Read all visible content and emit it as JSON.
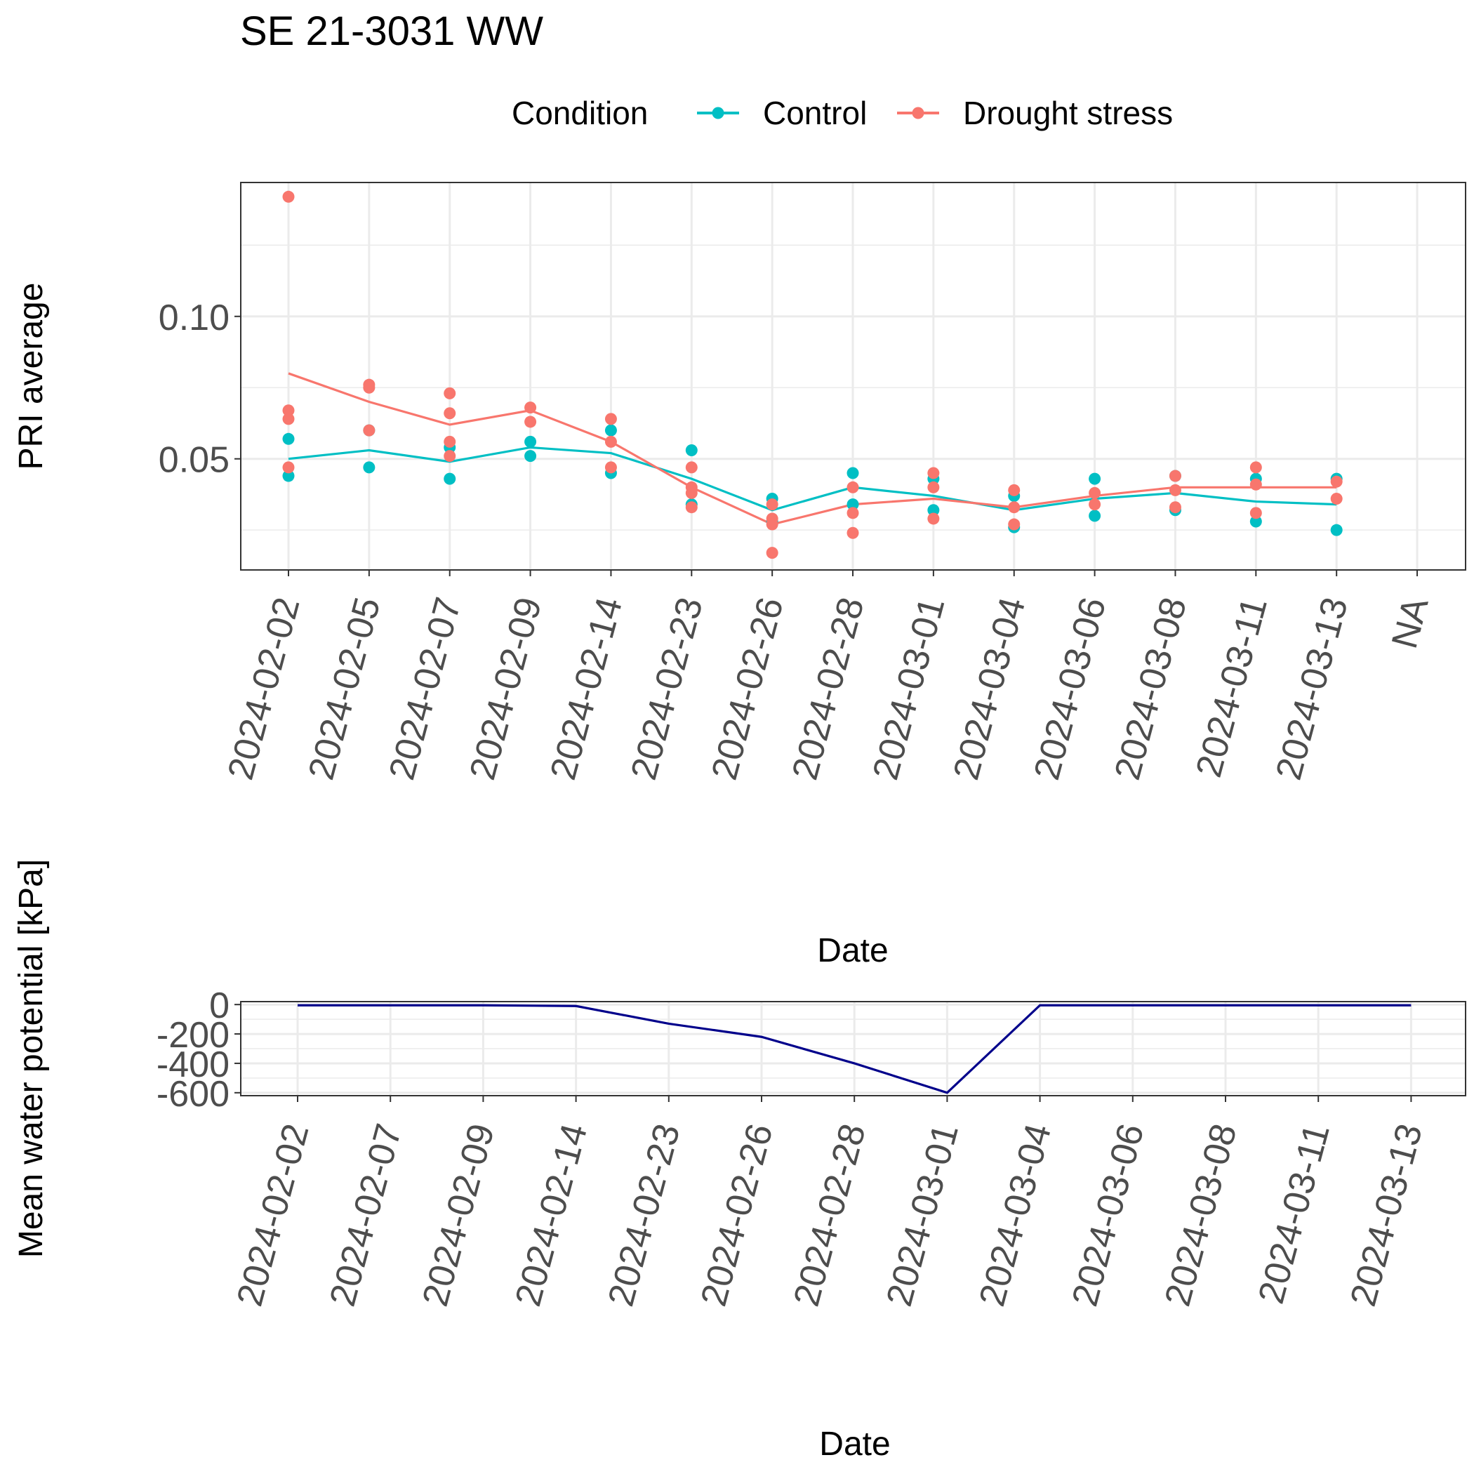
{
  "title": "SE 21-3031 WW",
  "legend": {
    "title": "Condition",
    "items": [
      {
        "label": "Control",
        "color": "#00BFC4"
      },
      {
        "label": "Drought stress",
        "color": "#F8766D"
      }
    ]
  },
  "chart_data": [
    {
      "type": "scatter",
      "title": "SE 21-3031 WW",
      "xlabel": "Date",
      "ylabel": "PRI average",
      "categories": [
        "2024-02-02",
        "2024-02-05",
        "2024-02-07",
        "2024-02-09",
        "2024-02-14",
        "2024-02-23",
        "2024-02-26",
        "2024-02-28",
        "2024-03-01",
        "2024-03-04",
        "2024-03-06",
        "2024-03-08",
        "2024-03-11",
        "2024-03-13",
        "NA"
      ],
      "ylim": [
        0.011,
        0.147
      ],
      "yticks": [
        0.05,
        0.1
      ],
      "ytick_labels": [
        "0.05",
        "0.10"
      ],
      "grid": true,
      "legend_position": "top",
      "series": [
        {
          "name": "Control",
          "color": "#00BFC4",
          "points": [
            [
              "2024-02-02",
              0.057
            ],
            [
              "2024-02-02",
              0.044
            ],
            [
              "2024-02-05",
              0.06
            ],
            [
              "2024-02-05",
              0.047
            ],
            [
              "2024-02-07",
              0.054
            ],
            [
              "2024-02-07",
              0.043
            ],
            [
              "2024-02-09",
              0.056
            ],
            [
              "2024-02-09",
              0.051
            ],
            [
              "2024-02-14",
              0.06
            ],
            [
              "2024-02-14",
              0.045
            ],
            [
              "2024-02-23",
              0.053
            ],
            [
              "2024-02-23",
              0.034
            ],
            [
              "2024-02-26",
              0.036
            ],
            [
              "2024-02-26",
              0.028
            ],
            [
              "2024-02-28",
              0.045
            ],
            [
              "2024-02-28",
              0.034
            ],
            [
              "2024-03-01",
              0.043
            ],
            [
              "2024-03-01",
              0.032
            ],
            [
              "2024-03-04",
              0.037
            ],
            [
              "2024-03-04",
              0.026
            ],
            [
              "2024-03-06",
              0.043
            ],
            [
              "2024-03-06",
              0.03
            ],
            [
              "2024-03-08",
              0.044
            ],
            [
              "2024-03-08",
              0.032
            ],
            [
              "2024-03-11",
              0.043
            ],
            [
              "2024-03-11",
              0.028
            ],
            [
              "2024-03-13",
              0.043
            ],
            [
              "2024-03-13",
              0.025
            ]
          ],
          "mean_line": [
            [
              "2024-02-02",
              0.05
            ],
            [
              "2024-02-05",
              0.053
            ],
            [
              "2024-02-07",
              0.049
            ],
            [
              "2024-02-09",
              0.054
            ],
            [
              "2024-02-14",
              0.052
            ],
            [
              "2024-02-23",
              0.043
            ],
            [
              "2024-02-26",
              0.032
            ],
            [
              "2024-02-28",
              0.04
            ],
            [
              "2024-03-01",
              0.037
            ],
            [
              "2024-03-04",
              0.032
            ],
            [
              "2024-03-06",
              0.036
            ],
            [
              "2024-03-08",
              0.038
            ],
            [
              "2024-03-11",
              0.035
            ],
            [
              "2024-03-13",
              0.034
            ]
          ]
        },
        {
          "name": "Drought stress",
          "color": "#F8766D",
          "points": [
            [
              "2024-02-02",
              0.142
            ],
            [
              "2024-02-02",
              0.067
            ],
            [
              "2024-02-02",
              0.064
            ],
            [
              "2024-02-02",
              0.047
            ],
            [
              "2024-02-05",
              0.076
            ],
            [
              "2024-02-05",
              0.075
            ],
            [
              "2024-02-05",
              0.06
            ],
            [
              "2024-02-07",
              0.073
            ],
            [
              "2024-02-07",
              0.066
            ],
            [
              "2024-02-07",
              0.056
            ],
            [
              "2024-02-07",
              0.051
            ],
            [
              "2024-02-09",
              0.068
            ],
            [
              "2024-02-09",
              0.063
            ],
            [
              "2024-02-14",
              0.064
            ],
            [
              "2024-02-14",
              0.056
            ],
            [
              "2024-02-14",
              0.047
            ],
            [
              "2024-02-23",
              0.047
            ],
            [
              "2024-02-23",
              0.04
            ],
            [
              "2024-02-23",
              0.038
            ],
            [
              "2024-02-23",
              0.033
            ],
            [
              "2024-02-26",
              0.034
            ],
            [
              "2024-02-26",
              0.029
            ],
            [
              "2024-02-26",
              0.027
            ],
            [
              "2024-02-26",
              0.017
            ],
            [
              "2024-02-28",
              0.04
            ],
            [
              "2024-02-28",
              0.031
            ],
            [
              "2024-02-28",
              0.024
            ],
            [
              "2024-03-01",
              0.045
            ],
            [
              "2024-03-01",
              0.04
            ],
            [
              "2024-03-01",
              0.029
            ],
            [
              "2024-03-04",
              0.039
            ],
            [
              "2024-03-04",
              0.033
            ],
            [
              "2024-03-04",
              0.027
            ],
            [
              "2024-03-06",
              0.038
            ],
            [
              "2024-03-06",
              0.034
            ],
            [
              "2024-03-08",
              0.044
            ],
            [
              "2024-03-08",
              0.039
            ],
            [
              "2024-03-08",
              0.033
            ],
            [
              "2024-03-11",
              0.047
            ],
            [
              "2024-03-11",
              0.041
            ],
            [
              "2024-03-11",
              0.031
            ],
            [
              "2024-03-13",
              0.042
            ],
            [
              "2024-03-13",
              0.036
            ]
          ],
          "mean_line": [
            [
              "2024-02-02",
              0.08
            ],
            [
              "2024-02-05",
              0.07
            ],
            [
              "2024-02-07",
              0.062
            ],
            [
              "2024-02-09",
              0.067
            ],
            [
              "2024-02-14",
              0.056
            ],
            [
              "2024-02-23",
              0.04
            ],
            [
              "2024-02-26",
              0.027
            ],
            [
              "2024-02-28",
              0.034
            ],
            [
              "2024-03-01",
              0.036
            ],
            [
              "2024-03-04",
              0.033
            ],
            [
              "2024-03-06",
              0.037
            ],
            [
              "2024-03-08",
              0.04
            ],
            [
              "2024-03-11",
              0.04
            ],
            [
              "2024-03-13",
              0.04
            ]
          ]
        }
      ]
    },
    {
      "type": "line",
      "xlabel": "Date",
      "ylabel": "Mean water potential [kPa]",
      "categories": [
        "2024-02-02",
        "2024-02-07",
        "2024-02-09",
        "2024-02-14",
        "2024-02-23",
        "2024-02-26",
        "2024-02-28",
        "2024-03-01",
        "2024-03-04",
        "2024-03-06",
        "2024-03-08",
        "2024-03-11",
        "2024-03-13"
      ],
      "ylim": [
        -620,
        20
      ],
      "yticks": [
        0,
        -200,
        -400,
        -600
      ],
      "ytick_labels": [
        "0",
        "-200",
        "-400",
        "-600"
      ],
      "grid": true,
      "series": [
        {
          "color": "#00008B",
          "values": [
            -5,
            -5,
            -5,
            -10,
            -130,
            -220,
            -400,
            -600,
            -5,
            -5,
            -5,
            -5,
            -5
          ]
        }
      ]
    }
  ]
}
